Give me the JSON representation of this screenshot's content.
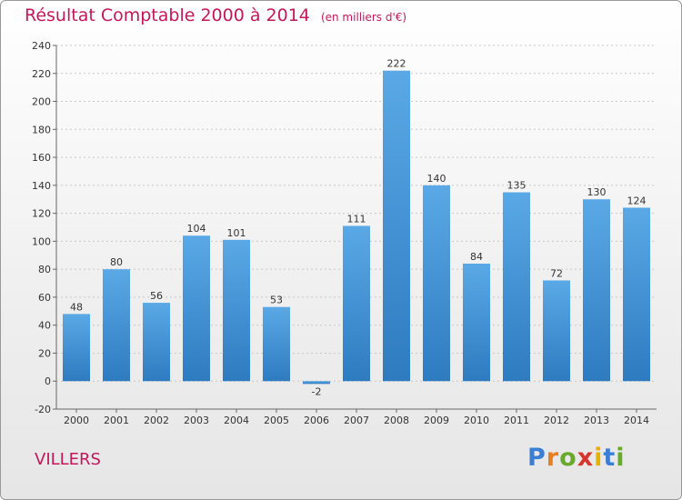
{
  "title": "Résultat Comptable 2000 à 2014",
  "subtitle": "(en milliers d'€)",
  "commune": "VILLERS",
  "logo": {
    "letters": [
      "P",
      "r",
      "o",
      "x",
      "i",
      "t",
      "i"
    ],
    "colors": [
      "#3b7fd4",
      "#e67e22",
      "#6aaa2a",
      "#d9342b",
      "#e8b100",
      "#3b7fd4",
      "#6aaa2a"
    ]
  },
  "colors": {
    "bar_top": "#5aa9e6",
    "bar_bottom": "#2e7bc0",
    "title": "#c2185b"
  },
  "chart_data": {
    "type": "bar",
    "title": "Résultat Comptable 2000 à 2014",
    "ylabel": "en milliers d'€",
    "categories": [
      "2000",
      "2001",
      "2002",
      "2003",
      "2004",
      "2005",
      "2006",
      "2007",
      "2008",
      "2009",
      "2010",
      "2011",
      "2012",
      "2013",
      "2014"
    ],
    "values": [
      48,
      80,
      56,
      104,
      101,
      53,
      -2,
      111,
      222,
      140,
      84,
      135,
      72,
      130,
      124
    ],
    "value_labels": [
      "48",
      "80",
      "56",
      "104",
      "101",
      "53",
      "-2",
      "111",
      "222",
      "140",
      "84",
      "135",
      "72",
      "130",
      "124"
    ],
    "ylim": [
      -20,
      240
    ],
    "yticks": [
      -20,
      0,
      20,
      40,
      60,
      80,
      100,
      120,
      140,
      160,
      180,
      200,
      220,
      240
    ],
    "grid": true
  }
}
